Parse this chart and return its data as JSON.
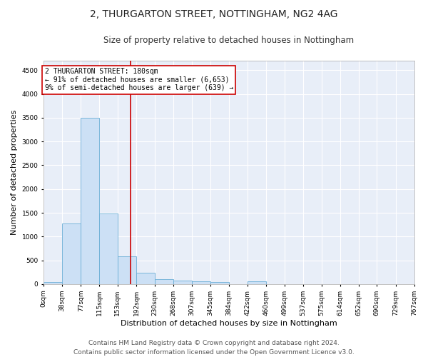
{
  "title": "2, THURGARTON STREET, NOTTINGHAM, NG2 4AG",
  "subtitle": "Size of property relative to detached houses in Nottingham",
  "xlabel": "Distribution of detached houses by size in Nottingham",
  "ylabel": "Number of detached properties",
  "bar_values": [
    50,
    1280,
    3500,
    1480,
    580,
    240,
    110,
    80,
    55,
    50,
    0,
    60,
    0,
    0,
    0,
    0,
    0,
    0,
    0,
    0
  ],
  "bin_edges": [
    0,
    38,
    77,
    115,
    153,
    192,
    230,
    268,
    307,
    345,
    384,
    422,
    460,
    499,
    537,
    575,
    614,
    652,
    690,
    729,
    767
  ],
  "tick_labels": [
    "0sqm",
    "38sqm",
    "77sqm",
    "115sqm",
    "153sqm",
    "192sqm",
    "230sqm",
    "268sqm",
    "307sqm",
    "345sqm",
    "384sqm",
    "422sqm",
    "460sqm",
    "499sqm",
    "537sqm",
    "575sqm",
    "614sqm",
    "652sqm",
    "690sqm",
    "729sqm",
    "767sqm"
  ],
  "bar_color": "#cce0f5",
  "bar_edge_color": "#6aaed6",
  "vline_x": 180,
  "vline_color": "#cc0000",
  "annotation_text": "2 THURGARTON STREET: 180sqm\n← 91% of detached houses are smaller (6,653)\n9% of semi-detached houses are larger (639) →",
  "annotation_box_color": "#ffffff",
  "annotation_box_edge": "#cc0000",
  "ylim": [
    0,
    4700
  ],
  "yticks": [
    0,
    500,
    1000,
    1500,
    2000,
    2500,
    3000,
    3500,
    4000,
    4500
  ],
  "background_color": "#e8eef8",
  "fig_background_color": "#ffffff",
  "grid_color": "#ffffff",
  "footer_text": "Contains HM Land Registry data © Crown copyright and database right 2024.\nContains public sector information licensed under the Open Government Licence v3.0.",
  "title_fontsize": 10,
  "subtitle_fontsize": 8.5,
  "xlabel_fontsize": 8,
  "ylabel_fontsize": 8,
  "tick_fontsize": 6.5,
  "footer_fontsize": 6.5,
  "annotation_fontsize": 7
}
